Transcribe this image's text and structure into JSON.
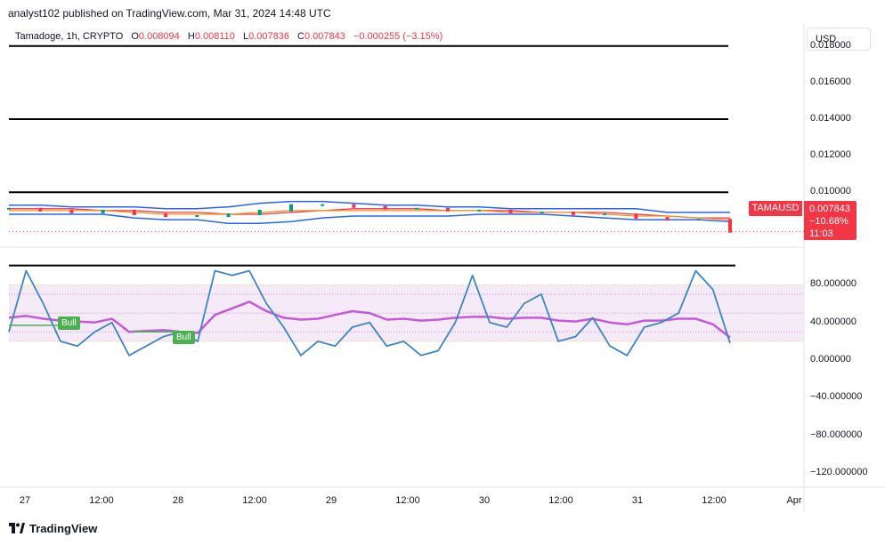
{
  "header": {
    "publisher": "analyst102 published on TradingView.com, Mar 31, 2024 14:48 UTC"
  },
  "symbol": {
    "name": "Tamadoge, 1h, CRYPTO",
    "open_label": "O",
    "open": "0.008094",
    "high_label": "H",
    "high": "0.008110",
    "low_label": "L",
    "low": "0.007836",
    "close_label": "C",
    "close": "0.007843",
    "change": "−0.000255 (−3.15%)"
  },
  "currency_button": "USD",
  "price_tag": {
    "symbol": "TAMAUSD",
    "price": "0.007843",
    "change_pct": "−10.68%",
    "countdown": "11:03"
  },
  "colors": {
    "up": "#089981",
    "down": "#f23645",
    "bb": "#2962ff",
    "ema_fast": "#f7931a",
    "ema_slow": "#f23645",
    "stoch_k": "#3d85c6",
    "rsi": "#c45ad8",
    "bull": "#4caf50"
  },
  "bull_labels": [
    "Bull",
    "Bull"
  ],
  "brand": {
    "logo_text": "TradingView",
    "logo_icon": "tradingview-logo-icon"
  },
  "chart_data": [
    {
      "type": "line",
      "panel": "price",
      "y_ticks": [
        "0.018000",
        "0.016000",
        "0.014000",
        "0.012000",
        "0.010000"
      ],
      "ylim": [
        0.007,
        0.0192
      ],
      "horizontal_levels": [
        0.018,
        0.014,
        0.01,
        0.006
      ],
      "x_labels": [
        "27",
        "12:00",
        "28",
        "12:00",
        "29",
        "12:00",
        "30",
        "12:00",
        "31",
        "12:00",
        "Apr"
      ],
      "bollinger_upper": [
        0.0093,
        0.0093,
        0.0092,
        0.0092,
        0.0092,
        0.0091,
        0.0091,
        0.0092,
        0.0094,
        0.0095,
        0.0095,
        0.0094,
        0.0093,
        0.0093,
        0.0092,
        0.0092,
        0.0091,
        0.0091,
        0.0091,
        0.0091,
        0.0091,
        0.0089,
        0.0089,
        0.0089
      ],
      "bollinger_lower": [
        0.0088,
        0.0088,
        0.0088,
        0.0088,
        0.0086,
        0.0085,
        0.0085,
        0.0083,
        0.0083,
        0.0084,
        0.0086,
        0.0087,
        0.0087,
        0.0087,
        0.0087,
        0.0088,
        0.0088,
        0.0088,
        0.0087,
        0.0086,
        0.0085,
        0.0085,
        0.0085,
        0.0084
      ],
      "ema_fast": [
        0.009,
        0.009,
        0.009,
        0.009,
        0.0089,
        0.0088,
        0.0088,
        0.0088,
        0.0089,
        0.009,
        0.009,
        0.009,
        0.009,
        0.009,
        0.009,
        0.009,
        0.0089,
        0.0089,
        0.0089,
        0.0088,
        0.0087,
        0.0087,
        0.0086,
        0.0085
      ],
      "ema_slow": [
        0.0091,
        0.0091,
        0.0091,
        0.009,
        0.009,
        0.0089,
        0.0089,
        0.0088,
        0.0088,
        0.0089,
        0.009,
        0.0091,
        0.0091,
        0.0091,
        0.009,
        0.009,
        0.009,
        0.0089,
        0.0089,
        0.0089,
        0.0088,
        0.0087,
        0.0086,
        0.0086
      ],
      "close": [
        0.0091,
        0.009,
        0.0089,
        0.009,
        0.0088,
        0.0087,
        0.0087,
        0.0088,
        0.009,
        0.0093,
        0.0093,
        0.0092,
        0.0091,
        0.0091,
        0.009,
        0.009,
        0.0089,
        0.0089,
        0.0088,
        0.0088,
        0.0086,
        0.0085,
        0.0085,
        0.007843
      ]
    },
    {
      "type": "line",
      "panel": "oscillator",
      "y_ticks": [
        "80.000000",
        "40.000000",
        "0.000000",
        "−40.000000",
        "−80.000000",
        "−120.000000"
      ],
      "ylim": [
        -135,
        120
      ],
      "band": [
        20,
        80
      ],
      "band_lines": [
        80,
        70,
        50,
        30,
        20
      ],
      "stoch_k": [
        30,
        95,
        60,
        20,
        15,
        30,
        40,
        5,
        15,
        25,
        30,
        20,
        95,
        90,
        95,
        60,
        35,
        5,
        20,
        15,
        35,
        40,
        15,
        20,
        5,
        10,
        40,
        90,
        40,
        35,
        60,
        70,
        20,
        25,
        45,
        15,
        5,
        35,
        40,
        50,
        95,
        75,
        18
      ],
      "rsi": [
        45,
        47,
        44,
        42,
        41,
        40,
        44,
        30,
        31,
        32,
        30,
        29,
        48,
        55,
        62,
        52,
        45,
        43,
        44,
        48,
        52,
        50,
        43,
        44,
        42,
        43,
        45,
        46,
        46,
        44,
        45,
        45,
        42,
        41,
        44,
        40,
        38,
        42,
        42,
        44,
        44,
        38,
        24
      ]
    }
  ]
}
